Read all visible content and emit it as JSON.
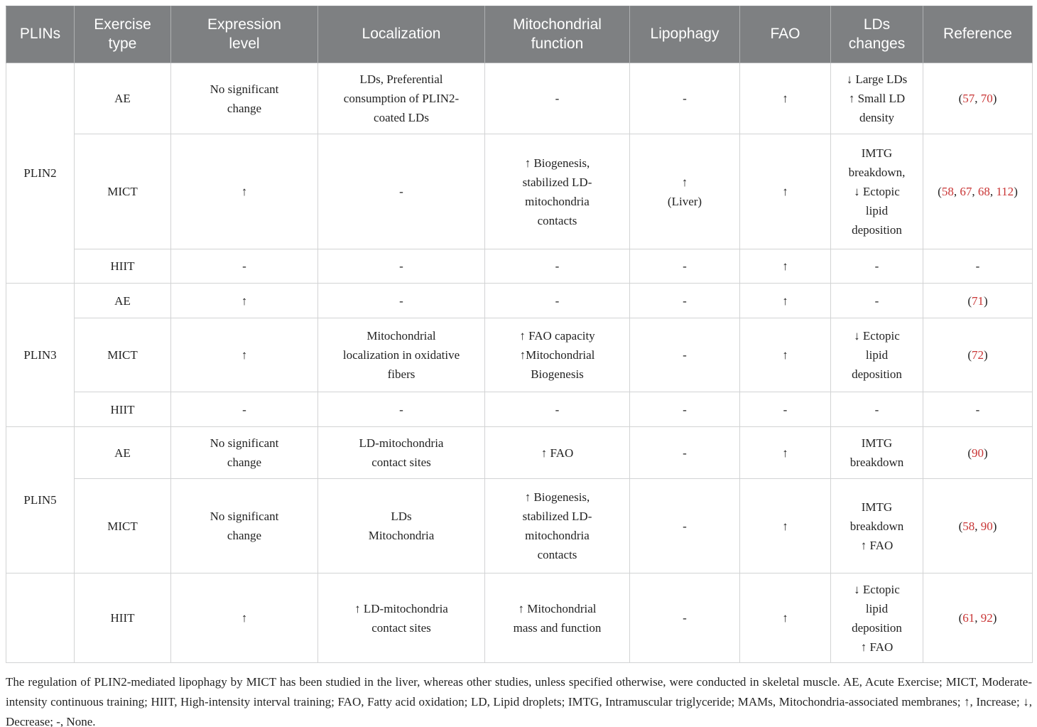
{
  "header": {
    "columns": [
      "PLINs",
      "Exercise\ntype",
      "Expression\nlevel",
      "Localization",
      "Mitochondrial\nfunction",
      "Lipophagy",
      "FAO",
      "LDs\nchanges",
      "Reference"
    ]
  },
  "rows": [
    {
      "plin": "PLIN2",
      "exercise": "AE",
      "expression": "No significant\nchange",
      "localization": "LDs, Preferential\nconsumption of PLIN2-\ncoated LDs",
      "mito_function": "-",
      "lipophagy": "-",
      "fao": "↑",
      "lds_changes": "↓ Large LDs\n↑ Small LD\ndensity",
      "reference": "(57, 70)"
    },
    {
      "exercise": "MICT",
      "expression": "↑",
      "localization": "-",
      "mito_function": "↑ Biogenesis,\nstabilized LD-\nmitochondria\ncontacts",
      "lipophagy": "↑\n(Liver)",
      "fao": "↑",
      "lds_changes": "IMTG\nbreakdown,\n↓ Ectopic\nlipid\ndeposition",
      "reference": "(58, 67, 68, 112)"
    },
    {
      "exercise": "HIIT",
      "expression": "-",
      "localization": "-",
      "mito_function": "-",
      "lipophagy": "-",
      "fao": "↑",
      "lds_changes": "-",
      "reference": "-"
    },
    {
      "plin": "PLIN3",
      "exercise": "AE",
      "expression": "↑",
      "localization": "-",
      "mito_function": "-",
      "lipophagy": "-",
      "fao": "↑",
      "lds_changes": "-",
      "reference": "(71)"
    },
    {
      "exercise": "MICT",
      "expression": "↑",
      "localization": "Mitochondrial\nlocalization in oxidative\nfibers",
      "mito_function": "↑ FAO capacity\n↑Mitochondrial\nBiogenesis",
      "lipophagy": "-",
      "fao": "↑",
      "lds_changes": "↓ Ectopic\nlipid\ndeposition",
      "reference": "(72)"
    },
    {
      "exercise": "HIIT",
      "expression": "-",
      "localization": "-",
      "mito_function": "-",
      "lipophagy": "-",
      "fao": "-",
      "lds_changes": "-",
      "reference": "-"
    },
    {
      "plin": "PLIN5",
      "exercise": "AE",
      "expression": "No significant\nchange",
      "localization": "LD-mitochondria\ncontact sites",
      "mito_function": "↑ FAO",
      "lipophagy": "-",
      "fao": "↑",
      "lds_changes": "IMTG\nbreakdown",
      "reference": "(90)"
    },
    {
      "exercise": "MICT",
      "expression": "No significant\nchange",
      "localization": "LDs\nMitochondria",
      "mito_function": "↑ Biogenesis,\nstabilized LD-\nmitochondria\ncontacts",
      "lipophagy": "-",
      "fao": "↑",
      "lds_changes": "IMTG\nbreakdown\n↑ FAO",
      "reference": "(58, 90)"
    },
    {
      "plin": "",
      "exercise": "HIIT",
      "expression": "↑",
      "localization": "↑ LD-mitochondria\ncontact sites",
      "mito_function": "↑ Mitochondrial\nmass and function",
      "lipophagy": "-",
      "fao": "↑",
      "lds_changes": "↓ Ectopic\nlipid\ndeposition\n↑ FAO",
      "reference": "(61, 92)"
    }
  ],
  "symbols": {
    "increase": "↑",
    "decrease": "↓",
    "none": "-"
  },
  "colors": {
    "header_background": "#7e8082",
    "header_text": "#ffffff",
    "body_text": "#232323",
    "reference_red": "#c93535",
    "grid_line": "#d2d3d4"
  },
  "footnote": "The regulation of PLIN2-mediated lipophagy by MICT has been studied in the liver, whereas other studies, unless specified otherwise, were conducted in skeletal muscle. AE, Acute Exercise; MICT, Moderate-intensity continuous training; HIIT, High-intensity interval training; FAO, Fatty acid oxidation; LD, Lipid droplets; IMTG, Intramuscular triglyceride; MAMs, Mitochondria-associated membranes; ↑, Increase; ↓, Decrease; -, None."
}
